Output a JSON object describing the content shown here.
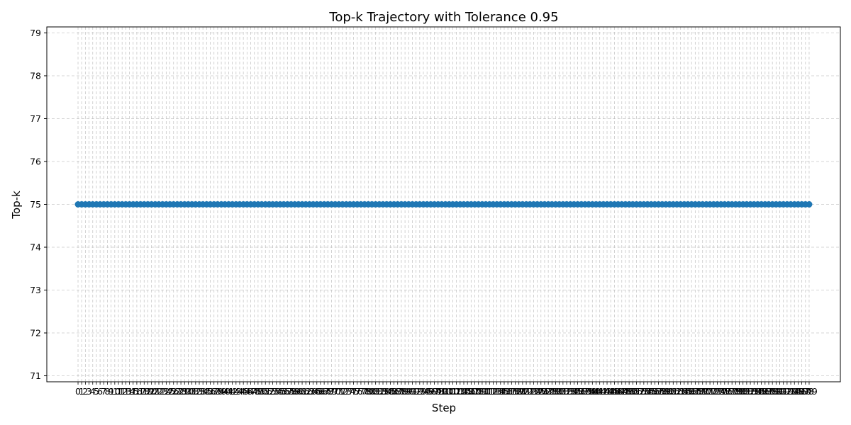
{
  "chart_data": {
    "type": "line",
    "title": "Top-k Trajectory with Tolerance 0.95",
    "xlabel": "Step",
    "ylabel": "Top-k",
    "x_start": 0,
    "x_end": 199,
    "x_step": 1,
    "constant_value": 75,
    "xlim": [
      -8.5,
      207.5
    ],
    "ylim": [
      70.86,
      79.14
    ],
    "y_ticks": [
      71,
      72,
      73,
      74,
      75,
      76,
      77,
      78,
      79
    ],
    "grid": true,
    "legend": "none",
    "series": [
      {
        "color": "#1f77b4",
        "marker": "circle"
      }
    ]
  }
}
